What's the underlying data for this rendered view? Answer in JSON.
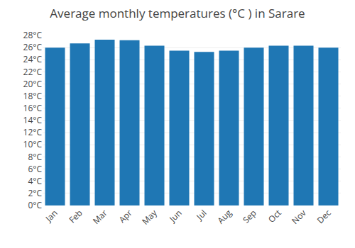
{
  "chart_data": {
    "type": "bar",
    "title": "Average monthly temperatures (°C ) in Sarare",
    "categories": [
      "Jan",
      "Feb",
      "Mar",
      "Apr",
      "May",
      "Jun",
      "Jul",
      "Aug",
      "Sep",
      "Oct",
      "Nov",
      "Dec"
    ],
    "values": [
      26.0,
      26.7,
      27.3,
      27.2,
      26.3,
      25.5,
      25.3,
      25.5,
      26.0,
      26.3,
      26.3,
      26.0
    ],
    "ylim": [
      0,
      28
    ],
    "yticks": [
      {
        "value": 0,
        "label": "0°C"
      },
      {
        "value": 2,
        "label": "2°C"
      },
      {
        "value": 4,
        "label": "4°C"
      },
      {
        "value": 6,
        "label": "6°C"
      },
      {
        "value": 8,
        "label": "8°C"
      },
      {
        "value": 10,
        "label": "10°C"
      },
      {
        "value": 12,
        "label": "12°C"
      },
      {
        "value": 14,
        "label": "14°C"
      },
      {
        "value": 16,
        "label": "16°C"
      },
      {
        "value": 18,
        "label": "18°C"
      },
      {
        "value": 20,
        "label": "20°C"
      },
      {
        "value": 22,
        "label": "22°C"
      },
      {
        "value": 24,
        "label": "24°C"
      },
      {
        "value": 26,
        "label": "26°C"
      },
      {
        "value": 28,
        "label": "28°C"
      }
    ],
    "grid": true
  }
}
